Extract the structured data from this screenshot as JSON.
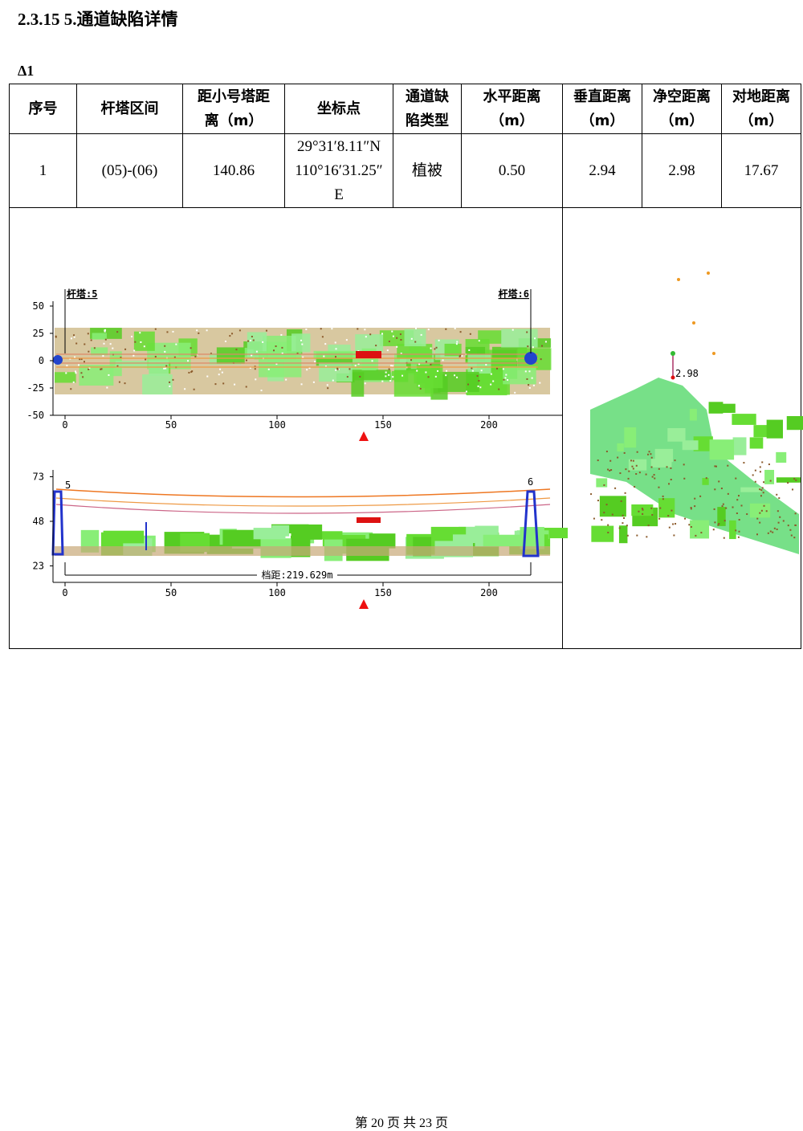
{
  "header": {
    "title": "2.3.15  5.通道缺陷详情",
    "subtitle": "Δ1"
  },
  "table": {
    "columns": [
      "序号",
      "杆塔区间",
      "距小号塔距离（m）",
      "坐标点",
      "通道缺陷类型",
      "水平距离（m）",
      "垂直距离（m）",
      "净空距离（m）",
      "对地距离（m）"
    ],
    "rows": [
      [
        "1",
        "(05)-(06)",
        "140.86",
        "29°31′8.11″N 110°16′31.25″E",
        "植被",
        "0.50",
        "2.94",
        "2.98",
        "17.67"
      ]
    ]
  },
  "figures": {
    "plan": {
      "xticks": [
        0,
        50,
        100,
        150,
        200
      ],
      "yticks": [
        50,
        25,
        0,
        -25,
        -50
      ],
      "tower_labels": [
        "杆塔:5",
        "杆塔:6"
      ]
    },
    "profile": {
      "xticks": [
        0,
        50,
        100,
        150,
        200
      ],
      "yticks": [
        73,
        48,
        23
      ],
      "tower_labels": [
        "5",
        "6"
      ],
      "span": "档距:219.629m"
    },
    "cross": {
      "clearance": "2.98"
    }
  },
  "footer": {
    "page": "第 20 页 共 23 页"
  }
}
